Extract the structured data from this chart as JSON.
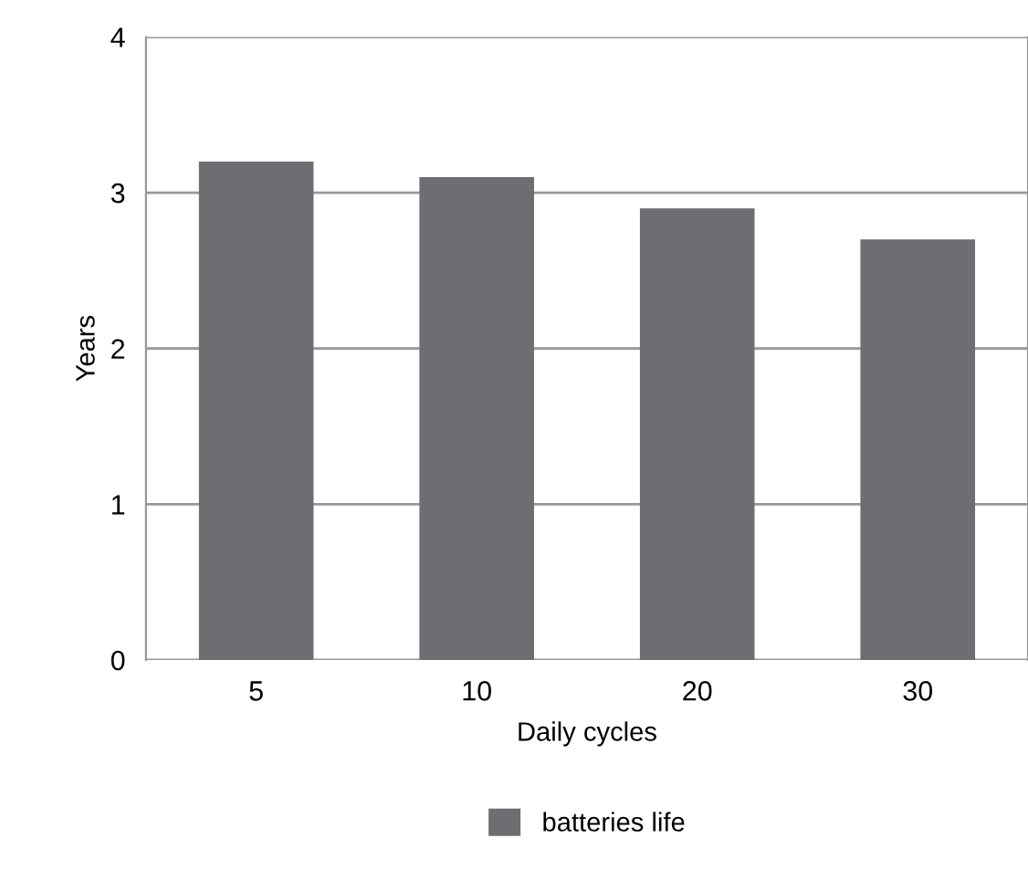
{
  "chart_data": {
    "type": "bar",
    "xlabel": "Daily cycles",
    "ylabel": "Years",
    "categories": [
      "5",
      "10",
      "20",
      "30"
    ],
    "series": [
      {
        "name": "batteries life",
        "color": "#6d6e71",
        "values": [
          3.2,
          3.1,
          2.9,
          2.7
        ]
      }
    ],
    "ylim": [
      0,
      4
    ],
    "yticks": [
      0,
      1,
      2,
      3,
      4
    ],
    "grid": "y",
    "legend": "bottom"
  }
}
